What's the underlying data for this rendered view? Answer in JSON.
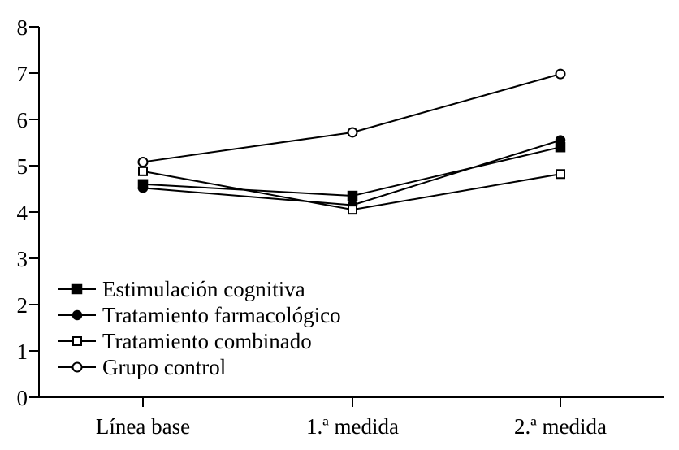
{
  "chart_data": {
    "type": "line",
    "title": "",
    "xlabel": "",
    "ylabel": "",
    "categories": [
      "Línea base",
      "1.ª medida",
      "2.ª medida"
    ],
    "ylim": [
      0,
      8
    ],
    "yticks": [
      0,
      1,
      2,
      3,
      4,
      5,
      6,
      7,
      8
    ],
    "grid": false,
    "legend_position": "bottom-left",
    "series": [
      {
        "name": "Estimulación cognitiva",
        "marker": "filled-square",
        "values": [
          4.6,
          4.35,
          5.4
        ]
      },
      {
        "name": "Tratamiento farmacológico",
        "marker": "filled-circle",
        "values": [
          4.52,
          4.15,
          5.55
        ]
      },
      {
        "name": "Tratamiento combinado",
        "marker": "open-square",
        "values": [
          4.88,
          4.05,
          4.82
        ]
      },
      {
        "name": "Grupo control",
        "marker": "open-circle",
        "values": [
          5.08,
          5.72,
          6.98
        ]
      }
    ]
  }
}
